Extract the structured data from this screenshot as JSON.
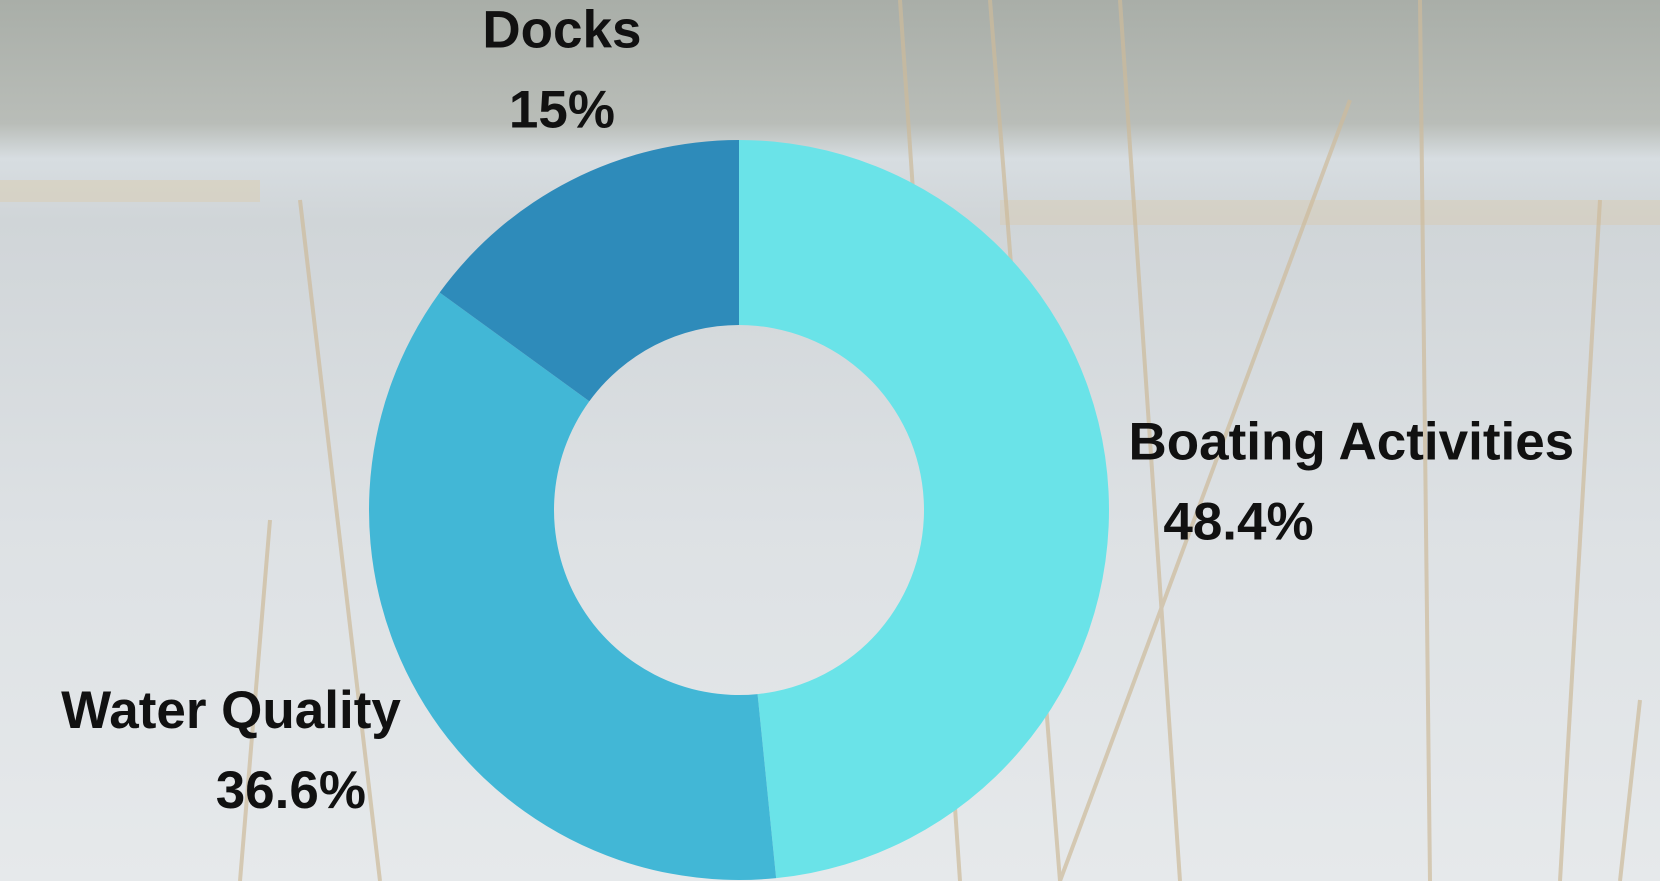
{
  "chart_data": {
    "type": "donut",
    "categories": [
      "Boating Activities",
      "Water Quality",
      "Docks"
    ],
    "values": [
      48.4,
      36.6,
      15
    ],
    "value_labels": [
      "48.4%",
      "36.6%",
      "15%"
    ],
    "colors": [
      "#6ae3e8",
      "#42b7d6",
      "#2e8bba"
    ]
  }
}
